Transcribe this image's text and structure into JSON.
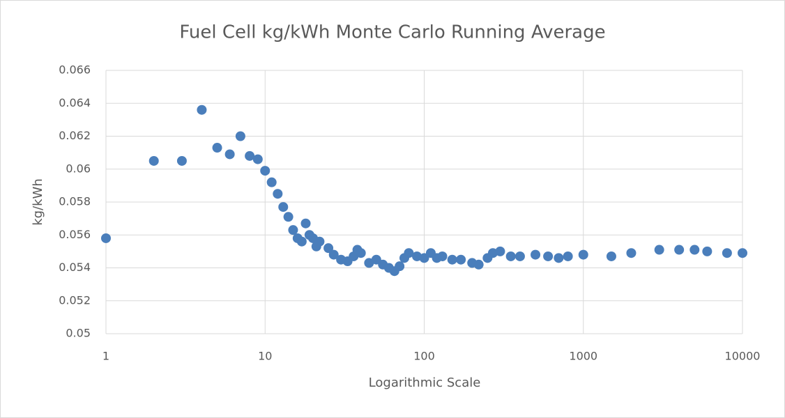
{
  "chart_data": {
    "type": "scatter",
    "title": "Fuel Cell kg/kWh Monte Carlo Running Average",
    "xlabel": "Logarithmic Scale",
    "ylabel": "kg/kWh",
    "xscale": "log",
    "grid": true,
    "xlim": [
      1,
      10000
    ],
    "xticks": [
      1,
      10,
      100,
      1000,
      10000
    ],
    "ylim": [
      0.05,
      0.066
    ],
    "yticks": [
      0.05,
      0.052,
      0.054,
      0.056,
      0.058,
      0.06,
      0.062,
      0.064,
      0.066
    ],
    "color": "#4a7ebb",
    "x": [
      1,
      2,
      3,
      4,
      5,
      6,
      7,
      8,
      9,
      10,
      11,
      12,
      13,
      14,
      15,
      16,
      17,
      18,
      19,
      20,
      21,
      22,
      25,
      27,
      30,
      33,
      36,
      38,
      40,
      45,
      50,
      55,
      60,
      65,
      70,
      75,
      80,
      90,
      100,
      110,
      120,
      130,
      150,
      170,
      200,
      220,
      250,
      270,
      300,
      350,
      400,
      500,
      600,
      700,
      800,
      1000,
      1500,
      2000,
      3000,
      4000,
      5000,
      6000,
      8000,
      10000
    ],
    "values": [
      0.0558,
      0.0605,
      0.0605,
      0.0636,
      0.0613,
      0.0609,
      0.062,
      0.0608,
      0.0606,
      0.0599,
      0.0592,
      0.0585,
      0.0577,
      0.0571,
      0.0563,
      0.0558,
      0.0556,
      0.0567,
      0.056,
      0.0558,
      0.0553,
      0.0556,
      0.0552,
      0.0548,
      0.0545,
      0.0544,
      0.0547,
      0.0551,
      0.0549,
      0.0543,
      0.0545,
      0.0542,
      0.054,
      0.0538,
      0.0541,
      0.0546,
      0.0549,
      0.0547,
      0.0546,
      0.0549,
      0.0546,
      0.0547,
      0.0545,
      0.0545,
      0.0543,
      0.0542,
      0.0546,
      0.0549,
      0.055,
      0.0547,
      0.0547,
      0.0548,
      0.0547,
      0.0546,
      0.0547,
      0.0548,
      0.0547,
      0.0549,
      0.0551,
      0.0551,
      0.0551,
      0.055,
      0.0549,
      0.0549
    ]
  }
}
